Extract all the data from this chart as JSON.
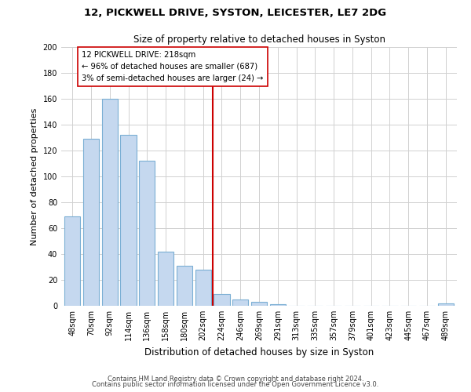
{
  "title": "12, PICKWELL DRIVE, SYSTON, LEICESTER, LE7 2DG",
  "subtitle": "Size of property relative to detached houses in Syston",
  "xlabel": "Distribution of detached houses by size in Syston",
  "ylabel": "Number of detached properties",
  "bar_labels": [
    "48sqm",
    "70sqm",
    "92sqm",
    "114sqm",
    "136sqm",
    "158sqm",
    "180sqm",
    "202sqm",
    "224sqm",
    "246sqm",
    "269sqm",
    "291sqm",
    "313sqm",
    "335sqm",
    "357sqm",
    "379sqm",
    "401sqm",
    "423sqm",
    "445sqm",
    "467sqm",
    "489sqm"
  ],
  "bar_values": [
    69,
    129,
    160,
    132,
    112,
    42,
    31,
    28,
    9,
    5,
    3,
    1,
    0,
    0,
    0,
    0,
    0,
    0,
    0,
    0,
    2
  ],
  "bar_color": "#c5d8ef",
  "bar_edge_color": "#7bafd4",
  "vline_color": "#cc0000",
  "annotation_text": "12 PICKWELL DRIVE: 218sqm\n← 96% of detached houses are smaller (687)\n3% of semi-detached houses are larger (24) →",
  "annotation_box_color": "#ffffff",
  "annotation_box_edge": "#cc0000",
  "ylim": [
    0,
    200
  ],
  "yticks": [
    0,
    20,
    40,
    60,
    80,
    100,
    120,
    140,
    160,
    180,
    200
  ],
  "footer_line1": "Contains HM Land Registry data © Crown copyright and database right 2024.",
  "footer_line2": "Contains public sector information licensed under the Open Government Licence v3.0.",
  "background_color": "#ffffff",
  "grid_color": "#d0d0d0"
}
